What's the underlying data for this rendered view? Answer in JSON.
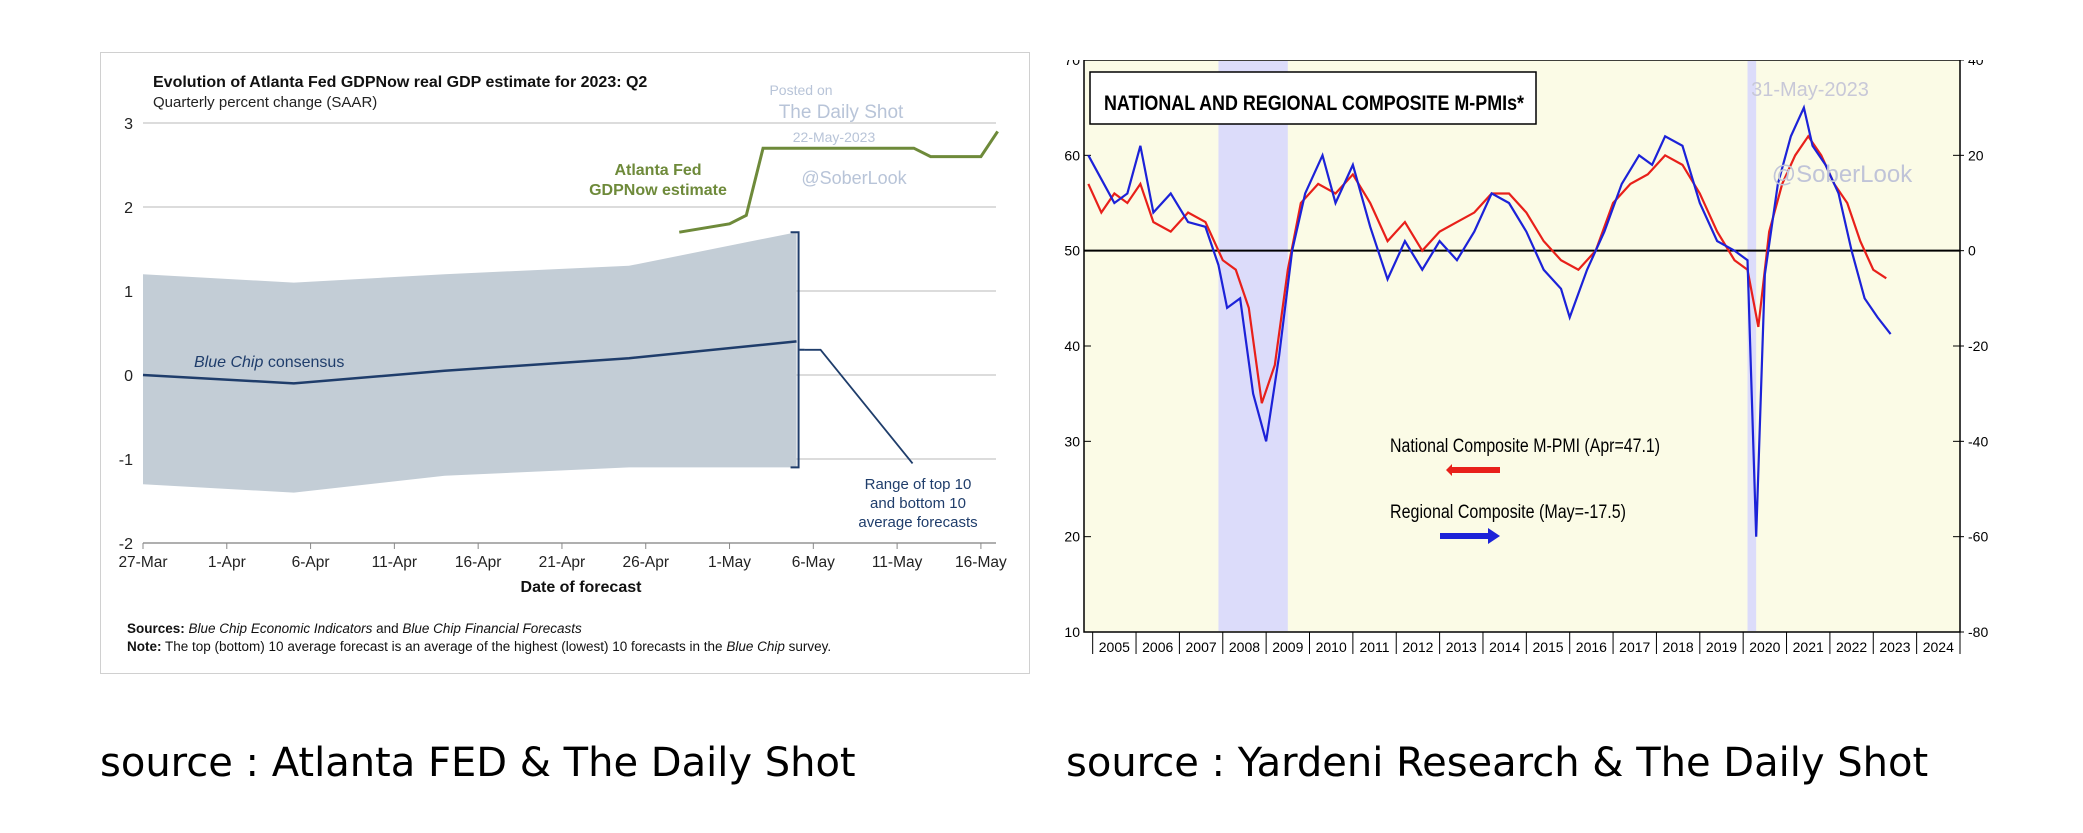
{
  "captions": {
    "left": "source : Atlanta FED & The Daily Shot",
    "right": "source : Yardeni Research & The Daily Shot"
  },
  "chart_data": [
    {
      "type": "line",
      "title": "Evolution of Atlanta Fed GDPNow real GDP estimate for 2023: Q2",
      "subtitle": "Quarterly percent change (SAAR)",
      "xlabel": "Date of forecast",
      "ylabel": "",
      "x_ticks": [
        "27-Mar",
        "1-Apr",
        "6-Apr",
        "11-Apr",
        "16-Apr",
        "21-Apr",
        "26-Apr",
        "1-May",
        "6-May",
        "11-May",
        "16-May"
      ],
      "y_ticks": [
        "3",
        "2",
        "1",
        "0",
        "-1",
        "-2"
      ],
      "ylim": [
        -2,
        3
      ],
      "xlim_days": [
        0,
        50
      ],
      "series": [
        {
          "name": "Atlanta Fed GDPNow estimate",
          "color": "#6e8a3a",
          "points": [
            [
              32,
              1.7
            ],
            [
              35,
              1.8
            ],
            [
              36,
              1.9
            ],
            [
              37,
              2.7
            ],
            [
              41,
              2.7
            ],
            [
              46,
              2.7
            ],
            [
              47,
              2.6
            ],
            [
              50,
              2.6
            ],
            [
              51,
              2.9
            ]
          ]
        },
        {
          "name": "Blue Chip consensus",
          "color": "#1f3d6b",
          "points": [
            [
              0,
              0.0
            ],
            [
              9,
              -0.1
            ],
            [
              18,
              0.05
            ],
            [
              29,
              0.2
            ],
            [
              39,
              0.4
            ]
          ]
        }
      ],
      "band": {
        "name": "Range of top 10 and bottom 10 average forecasts",
        "color": "#c3cdd6",
        "upper": [
          [
            0,
            1.2
          ],
          [
            9,
            1.1
          ],
          [
            18,
            1.2
          ],
          [
            29,
            1.3
          ],
          [
            39,
            1.7
          ]
        ],
        "lower": [
          [
            0,
            -1.3
          ],
          [
            9,
            -1.4
          ],
          [
            18,
            -1.2
          ],
          [
            29,
            -1.1
          ],
          [
            39,
            -1.1
          ]
        ]
      },
      "annotations": {
        "gdpnow_label_1": "Atlanta Fed",
        "gdpnow_label_2": "GDPNow estimate",
        "consensus_prefix": "Blue Chip",
        "consensus_suffix": " consensus",
        "range_line_1": "Range of top 10",
        "range_line_2": "and bottom 10",
        "range_line_3": "average forecasts",
        "watermark_posted": "Posted on",
        "watermark_site": "The Daily Shot",
        "watermark_date": "22-May-2023",
        "watermark_handle": "@SoberLook"
      },
      "sources": {
        "label": "Sources:",
        "src1": " Blue Chip Economic Indicators",
        "and": " and ",
        "src2": "Blue Chip Financial Forecasts",
        "note_label": "Note:",
        "note_text": " The top (bottom) 10 average forecast is an average of the highest (lowest) 10 forecasts in the ",
        "note_em": "Blue Chip",
        "note_end": " survey."
      }
    },
    {
      "type": "line",
      "title": "NATIONAL AND REGIONAL COMPOSITE M-PMIs*",
      "x_ticks": [
        "2005",
        "2006",
        "2007",
        "2008",
        "2009",
        "2010",
        "2011",
        "2012",
        "2013",
        "2014",
        "2015",
        "2016",
        "2017",
        "2018",
        "2019",
        "2020",
        "2021",
        "2022",
        "2023",
        "2024"
      ],
      "xlim": [
        2004.8,
        2025.0
      ],
      "y_left_ticks": [
        "70",
        "60",
        "50",
        "40",
        "30",
        "20",
        "10"
      ],
      "y_left_lim": [
        10,
        70
      ],
      "y_right_ticks": [
        "40",
        "20",
        "0",
        "-20",
        "-40",
        "-60",
        "-80"
      ],
      "y_right_lim": [
        -80,
        40
      ],
      "recessions": [
        [
          2007.9,
          2009.5
        ],
        [
          2020.1,
          2020.3
        ]
      ],
      "watermark_date": "31-May-2023",
      "watermark_handle": "@SoberLook",
      "series": [
        {
          "name": "National Composite M-PMI (Apr=47.1)",
          "axis": "left",
          "color": "#e8201a",
          "points": [
            [
              2004.9,
              57
            ],
            [
              2005.2,
              54
            ],
            [
              2005.5,
              56
            ],
            [
              2005.8,
              55
            ],
            [
              2006.1,
              57
            ],
            [
              2006.4,
              53
            ],
            [
              2006.8,
              52
            ],
            [
              2007.2,
              54
            ],
            [
              2007.6,
              53
            ],
            [
              2008.0,
              49
            ],
            [
              2008.3,
              48
            ],
            [
              2008.6,
              44
            ],
            [
              2008.9,
              34
            ],
            [
              2009.2,
              38
            ],
            [
              2009.5,
              48
            ],
            [
              2009.8,
              55
            ],
            [
              2010.2,
              57
            ],
            [
              2010.6,
              56
            ],
            [
              2011.0,
              58
            ],
            [
              2011.4,
              55
            ],
            [
              2011.8,
              51
            ],
            [
              2012.2,
              53
            ],
            [
              2012.6,
              50
            ],
            [
              2013.0,
              52
            ],
            [
              2013.4,
              53
            ],
            [
              2013.8,
              54
            ],
            [
              2014.2,
              56
            ],
            [
              2014.6,
              56
            ],
            [
              2015.0,
              54
            ],
            [
              2015.4,
              51
            ],
            [
              2015.8,
              49
            ],
            [
              2016.2,
              48
            ],
            [
              2016.6,
              50
            ],
            [
              2017.0,
              55
            ],
            [
              2017.4,
              57
            ],
            [
              2017.8,
              58
            ],
            [
              2018.2,
              60
            ],
            [
              2018.6,
              59
            ],
            [
              2019.0,
              56
            ],
            [
              2019.4,
              52
            ],
            [
              2019.8,
              49
            ],
            [
              2020.1,
              48
            ],
            [
              2020.35,
              42
            ],
            [
              2020.6,
              52
            ],
            [
              2020.9,
              57
            ],
            [
              2021.2,
              60
            ],
            [
              2021.5,
              62
            ],
            [
              2021.8,
              60
            ],
            [
              2022.1,
              57
            ],
            [
              2022.4,
              55
            ],
            [
              2022.7,
              51
            ],
            [
              2023.0,
              48
            ],
            [
              2023.3,
              47.1
            ]
          ]
        },
        {
          "name": "Regional Composite (May=-17.5)",
          "axis": "right",
          "color": "#1c22d8",
          "points": [
            [
              2004.9,
              20
            ],
            [
              2005.2,
              15
            ],
            [
              2005.5,
              10
            ],
            [
              2005.8,
              12
            ],
            [
              2006.1,
              22
            ],
            [
              2006.4,
              8
            ],
            [
              2006.8,
              12
            ],
            [
              2007.2,
              6
            ],
            [
              2007.6,
              5
            ],
            [
              2007.9,
              -3
            ],
            [
              2008.1,
              -12
            ],
            [
              2008.4,
              -10
            ],
            [
              2008.7,
              -30
            ],
            [
              2009.0,
              -40
            ],
            [
              2009.3,
              -22
            ],
            [
              2009.6,
              0
            ],
            [
              2009.9,
              12
            ],
            [
              2010.3,
              20
            ],
            [
              2010.6,
              10
            ],
            [
              2011.0,
              18
            ],
            [
              2011.4,
              5
            ],
            [
              2011.8,
              -6
            ],
            [
              2012.2,
              2
            ],
            [
              2012.6,
              -4
            ],
            [
              2013.0,
              2
            ],
            [
              2013.4,
              -2
            ],
            [
              2013.8,
              4
            ],
            [
              2014.2,
              12
            ],
            [
              2014.6,
              10
            ],
            [
              2015.0,
              4
            ],
            [
              2015.4,
              -4
            ],
            [
              2015.8,
              -8
            ],
            [
              2016.0,
              -14
            ],
            [
              2016.4,
              -4
            ],
            [
              2016.8,
              4
            ],
            [
              2017.2,
              14
            ],
            [
              2017.6,
              20
            ],
            [
              2017.9,
              18
            ],
            [
              2018.2,
              24
            ],
            [
              2018.6,
              22
            ],
            [
              2019.0,
              10
            ],
            [
              2019.4,
              2
            ],
            [
              2019.8,
              0
            ],
            [
              2020.1,
              -2
            ],
            [
              2020.3,
              -60
            ],
            [
              2020.5,
              -5
            ],
            [
              2020.8,
              14
            ],
            [
              2021.1,
              24
            ],
            [
              2021.4,
              30
            ],
            [
              2021.6,
              22
            ],
            [
              2021.9,
              18
            ],
            [
              2022.2,
              12
            ],
            [
              2022.5,
              0
            ],
            [
              2022.8,
              -10
            ],
            [
              2023.1,
              -14
            ],
            [
              2023.4,
              -17.5
            ]
          ]
        }
      ],
      "legend": {
        "national": "National Composite M-PMI (Apr=47.1)",
        "regional": "Regional Composite (May=-17.5)"
      }
    }
  ]
}
